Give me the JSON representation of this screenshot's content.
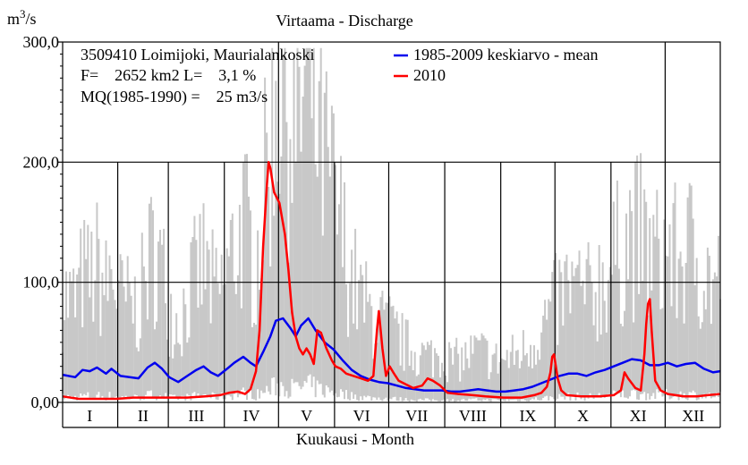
{
  "chart_data": {
    "type": "line",
    "title": "Virtaama - Discharge",
    "xlabel": "Kuukausi - Month",
    "ylabel_base": "m",
    "ylabel_exp": "3",
    "ylabel_tail": "/s",
    "ylim": [
      0,
      300
    ],
    "y_ticks": [
      {
        "value": 0,
        "label": "0,00"
      },
      {
        "value": 100,
        "label": "100,0"
      },
      {
        "value": 200,
        "label": "200,0"
      },
      {
        "value": 300,
        "label": "300,0"
      }
    ],
    "months": [
      "I",
      "II",
      "III",
      "IV",
      "V",
      "VI",
      "VII",
      "VIII",
      "IX",
      "X",
      "XI",
      "XII"
    ],
    "month_days": [
      31,
      28,
      31,
      30,
      31,
      30,
      31,
      31,
      30,
      31,
      30,
      31
    ],
    "station_info": [
      "3509410 Loimijoki, Maurialankoski",
      "F=    2652 km2 L=    3,1 %",
      "MQ(1985-1990) =    25 m3/s"
    ],
    "legend_position": "top-right",
    "grid": "partial",
    "envelope_color": "#c8c8c8",
    "series": [
      {
        "name": "1985-2009 keskiarvo - mean",
        "color": "#0000ee",
        "points": [
          [
            1,
            23
          ],
          [
            8,
            21
          ],
          [
            12,
            27
          ],
          [
            16,
            26
          ],
          [
            20,
            29
          ],
          [
            25,
            24
          ],
          [
            28,
            28
          ],
          [
            33,
            22
          ],
          [
            38,
            21
          ],
          [
            43,
            20
          ],
          [
            48,
            29
          ],
          [
            52,
            33
          ],
          [
            56,
            28
          ],
          [
            60,
            21
          ],
          [
            65,
            17
          ],
          [
            70,
            22
          ],
          [
            75,
            27
          ],
          [
            79,
            30
          ],
          [
            83,
            25
          ],
          [
            87,
            22
          ],
          [
            92,
            28
          ],
          [
            96,
            33
          ],
          [
            101,
            38
          ],
          [
            105,
            33
          ],
          [
            108,
            30
          ],
          [
            112,
            42
          ],
          [
            116,
            55
          ],
          [
            119,
            68
          ],
          [
            123,
            70
          ],
          [
            127,
            62
          ],
          [
            130,
            55
          ],
          [
            133,
            64
          ],
          [
            137,
            70
          ],
          [
            141,
            60
          ],
          [
            146,
            50
          ],
          [
            151,
            44
          ],
          [
            156,
            35
          ],
          [
            161,
            27
          ],
          [
            166,
            22
          ],
          [
            171,
            19
          ],
          [
            176,
            17
          ],
          [
            181,
            16
          ],
          [
            186,
            14
          ],
          [
            191,
            12
          ],
          [
            196,
            11
          ],
          [
            201,
            10
          ],
          [
            206,
            10
          ],
          [
            211,
            10
          ],
          [
            216,
            9
          ],
          [
            221,
            9
          ],
          [
            226,
            10
          ],
          [
            231,
            11
          ],
          [
            236,
            10
          ],
          [
            241,
            9
          ],
          [
            246,
            9
          ],
          [
            251,
            10
          ],
          [
            256,
            11
          ],
          [
            261,
            13
          ],
          [
            266,
            16
          ],
          [
            271,
            19
          ],
          [
            276,
            22
          ],
          [
            281,
            24
          ],
          [
            286,
            24
          ],
          [
            291,
            22
          ],
          [
            296,
            25
          ],
          [
            301,
            27
          ],
          [
            306,
            30
          ],
          [
            311,
            33
          ],
          [
            316,
            36
          ],
          [
            321,
            35
          ],
          [
            326,
            31
          ],
          [
            331,
            31
          ],
          [
            336,
            33
          ],
          [
            341,
            30
          ],
          [
            346,
            32
          ],
          [
            351,
            33
          ],
          [
            356,
            28
          ],
          [
            361,
            25
          ],
          [
            365,
            26
          ]
        ]
      },
      {
        "name": "2010",
        "color": "#ff0000",
        "points": [
          [
            1,
            5
          ],
          [
            10,
            3
          ],
          [
            20,
            3
          ],
          [
            31,
            3
          ],
          [
            40,
            4
          ],
          [
            50,
            4
          ],
          [
            59,
            4
          ],
          [
            70,
            4
          ],
          [
            80,
            5
          ],
          [
            88,
            6
          ],
          [
            93,
            8
          ],
          [
            98,
            9
          ],
          [
            102,
            7
          ],
          [
            105,
            11
          ],
          [
            108,
            26
          ],
          [
            110,
            60
          ],
          [
            112,
            130
          ],
          [
            114,
            180
          ],
          [
            115,
            200
          ],
          [
            116,
            195
          ],
          [
            118,
            175
          ],
          [
            121,
            166
          ],
          [
            124,
            140
          ],
          [
            126,
            110
          ],
          [
            128,
            75
          ],
          [
            130,
            55
          ],
          [
            132,
            45
          ],
          [
            134,
            40
          ],
          [
            136,
            45
          ],
          [
            138,
            40
          ],
          [
            140,
            32
          ],
          [
            142,
            60
          ],
          [
            144,
            58
          ],
          [
            147,
            45
          ],
          [
            150,
            35
          ],
          [
            152,
            30
          ],
          [
            155,
            28
          ],
          [
            158,
            24
          ],
          [
            162,
            22
          ],
          [
            166,
            20
          ],
          [
            170,
            18
          ],
          [
            173,
            22
          ],
          [
            175,
            60
          ],
          [
            176,
            76
          ],
          [
            178,
            45
          ],
          [
            180,
            22
          ],
          [
            182,
            30
          ],
          [
            184,
            25
          ],
          [
            187,
            18
          ],
          [
            191,
            15
          ],
          [
            195,
            12
          ],
          [
            200,
            14
          ],
          [
            203,
            20
          ],
          [
            206,
            18
          ],
          [
            210,
            14
          ],
          [
            214,
            8
          ],
          [
            220,
            7
          ],
          [
            228,
            6
          ],
          [
            235,
            5
          ],
          [
            245,
            4
          ],
          [
            255,
            4
          ],
          [
            262,
            6
          ],
          [
            266,
            8
          ],
          [
            269,
            13
          ],
          [
            271,
            25
          ],
          [
            272,
            38
          ],
          [
            273,
            40
          ],
          [
            275,
            20
          ],
          [
            277,
            10
          ],
          [
            280,
            6
          ],
          [
            288,
            5
          ],
          [
            298,
            5
          ],
          [
            306,
            6
          ],
          [
            310,
            10
          ],
          [
            312,
            25
          ],
          [
            314,
            20
          ],
          [
            318,
            12
          ],
          [
            321,
            10
          ],
          [
            323,
            40
          ],
          [
            324,
            65
          ],
          [
            325,
            82
          ],
          [
            326,
            86
          ],
          [
            327,
            60
          ],
          [
            329,
            18
          ],
          [
            332,
            10
          ],
          [
            336,
            7
          ],
          [
            345,
            5
          ],
          [
            352,
            5
          ],
          [
            358,
            6
          ],
          [
            365,
            7
          ]
        ]
      }
    ]
  }
}
